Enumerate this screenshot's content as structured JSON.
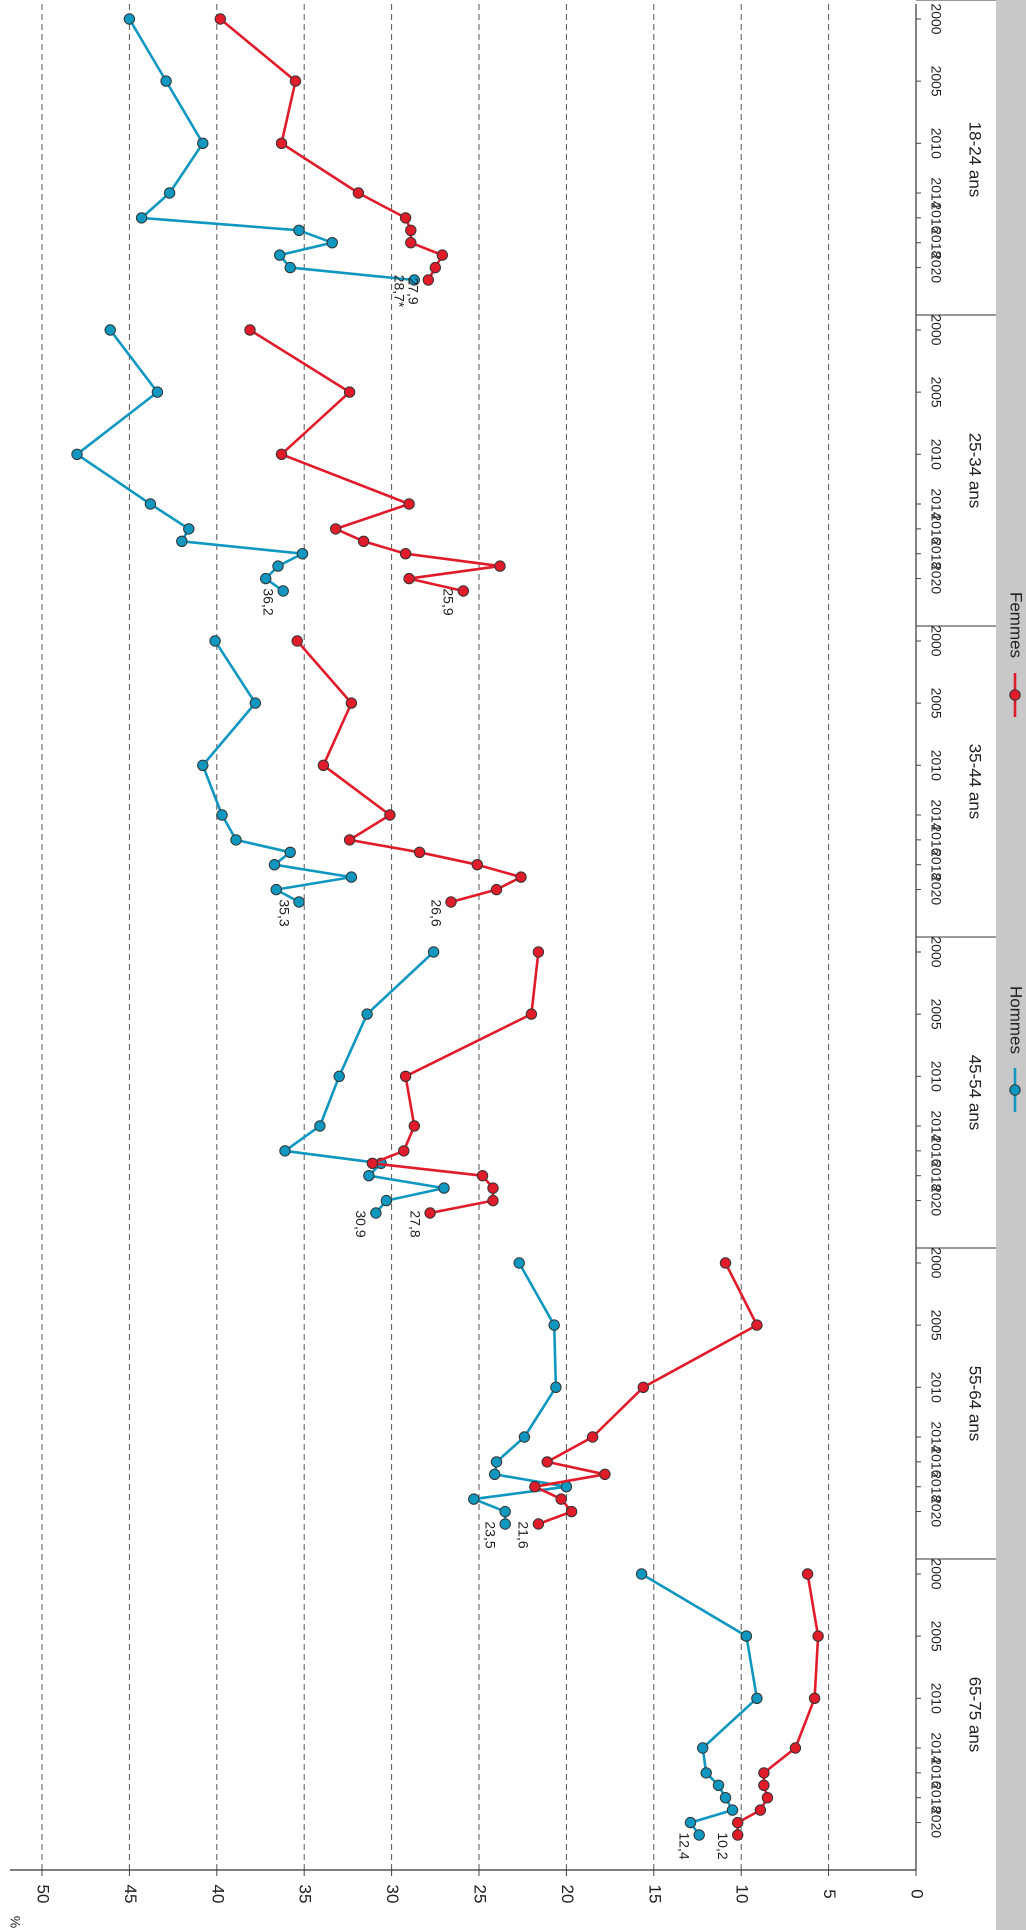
{
  "chart_data": {
    "type": "line",
    "ylabel": "%",
    "ylim": [
      0,
      50
    ],
    "yticks": [
      0,
      5,
      10,
      15,
      20,
      25,
      30,
      35,
      40,
      45,
      50
    ],
    "grid": "horizontal dashed",
    "orientation": "rotated 90° clockwise",
    "legend_position": "bottom",
    "colors": {
      "hommes": "#0f97c0",
      "femmes": "#e01b2a"
    },
    "series": [
      {
        "name": "Hommes",
        "color": "#0f97c0"
      },
      {
        "name": "Femmes",
        "color": "#e01b2a"
      }
    ],
    "groups": [
      {
        "label": "18-24 ans",
        "x_ticks": [
          "2000",
          "2005",
          "2010",
          "2014",
          "2016",
          "2018",
          "2020"
        ],
        "hommes": {
          "x": [
            2000,
            2005,
            2010,
            2014,
            2016,
            2017,
            2018,
            2019,
            2020,
            2021
          ],
          "y": [
            45.0,
            42.9,
            40.8,
            42.7,
            44.3,
            35.3,
            33.4,
            36.4,
            35.8,
            28.7
          ]
        },
        "femmes": {
          "x": [
            2000,
            2005,
            2010,
            2014,
            2016,
            2017,
            2018,
            2019,
            2020,
            2021
          ],
          "y": [
            39.8,
            35.5,
            36.3,
            31.9,
            29.2,
            28.9,
            28.9,
            27.1,
            27.5,
            27.9
          ]
        },
        "annotations": [
          "28,7*",
          "27,9"
        ]
      },
      {
        "label": "25-34 ans",
        "x_ticks": [
          "2000",
          "2005",
          "2010",
          "2014",
          "2016",
          "2018",
          "2020"
        ],
        "hommes": {
          "x": [
            2000,
            2005,
            2010,
            2014,
            2016,
            2017,
            2018,
            2019,
            2020,
            2021
          ],
          "y": [
            46.1,
            43.4,
            48.0,
            43.8,
            41.6,
            42.0,
            35.1,
            36.5,
            37.2,
            36.2
          ]
        },
        "femmes": {
          "x": [
            2000,
            2005,
            2010,
            2014,
            2016,
            2017,
            2018,
            2019,
            2020,
            2021
          ],
          "y": [
            38.1,
            32.4,
            36.3,
            29.0,
            33.2,
            31.6,
            29.2,
            23.8,
            29.0,
            25.9
          ]
        },
        "annotations": [
          "36,2",
          "25,9"
        ]
      },
      {
        "label": "35-44 ans",
        "x_ticks": [
          "2000",
          "2005",
          "2010",
          "2014",
          "2016",
          "2018",
          "2020"
        ],
        "hommes": {
          "x": [
            2000,
            2005,
            2010,
            2014,
            2016,
            2017,
            2018,
            2019,
            2020,
            2021
          ],
          "y": [
            40.1,
            37.8,
            40.8,
            39.7,
            38.9,
            35.8,
            36.7,
            32.3,
            36.6,
            35.3
          ]
        },
        "femmes": {
          "x": [
            2000,
            2005,
            2010,
            2014,
            2016,
            2017,
            2018,
            2019,
            2020,
            2021
          ],
          "y": [
            35.4,
            32.3,
            33.9,
            30.1,
            32.4,
            28.4,
            25.1,
            22.6,
            24.0,
            26.6
          ]
        },
        "annotations": [
          "35,3",
          "26,6"
        ]
      },
      {
        "label": "45-54 ans",
        "x_ticks": [
          "2000",
          "2005",
          "2010",
          "2014",
          "2016",
          "2018",
          "2020"
        ],
        "hommes": {
          "x": [
            2000,
            2005,
            2010,
            2014,
            2016,
            2017,
            2018,
            2019,
            2020,
            2021
          ],
          "y": [
            27.6,
            31.4,
            33.0,
            34.1,
            36.1,
            30.6,
            31.3,
            27.0,
            30.3,
            30.9
          ]
        },
        "femmes": {
          "x": [
            2000,
            2005,
            2010,
            2014,
            2016,
            2017,
            2018,
            2019,
            2020,
            2021
          ],
          "y": [
            21.6,
            22.0,
            29.2,
            28.7,
            29.3,
            31.1,
            24.8,
            24.2,
            24.2,
            27.8
          ]
        },
        "annotations": [
          "30,9",
          "27,8"
        ]
      },
      {
        "label": "55-64 ans",
        "x_ticks": [
          "2000",
          "2005",
          "2010",
          "2014",
          "2016",
          "2018",
          "2020"
        ],
        "hommes": {
          "x": [
            2000,
            2005,
            2010,
            2014,
            2016,
            2017,
            2018,
            2019,
            2020,
            2021
          ],
          "y": [
            22.7,
            20.7,
            20.6,
            22.4,
            24.0,
            24.1,
            20.0,
            25.3,
            23.5,
            23.5
          ]
        },
        "femmes": {
          "x": [
            2000,
            2005,
            2010,
            2014,
            2016,
            2017,
            2018,
            2019,
            2020,
            2021
          ],
          "y": [
            10.9,
            9.1,
            15.6,
            18.5,
            21.1,
            17.8,
            21.8,
            20.3,
            19.7,
            21.6
          ]
        },
        "annotations": [
          "23,5",
          "21,6"
        ]
      },
      {
        "label": "65-75 ans",
        "x_ticks": [
          "2000",
          "2005",
          "2010",
          "2014",
          "2016",
          "2018",
          "2020"
        ],
        "hommes": {
          "x": [
            2000,
            2005,
            2010,
            2014,
            2016,
            2017,
            2018,
            2019,
            2020,
            2021
          ],
          "y": [
            15.7,
            9.7,
            9.1,
            12.2,
            12.0,
            11.3,
            10.9,
            10.5,
            12.9,
            12.4
          ]
        },
        "femmes": {
          "x": [
            2000,
            2005,
            2010,
            2014,
            2016,
            2017,
            2018,
            2019,
            2020,
            2021
          ],
          "y": [
            6.2,
            5.6,
            5.8,
            6.9,
            8.7,
            8.7,
            8.5,
            8.9,
            10.2,
            10.2
          ]
        },
        "annotations": [
          "12,4",
          "10,2"
        ]
      }
    ]
  }
}
